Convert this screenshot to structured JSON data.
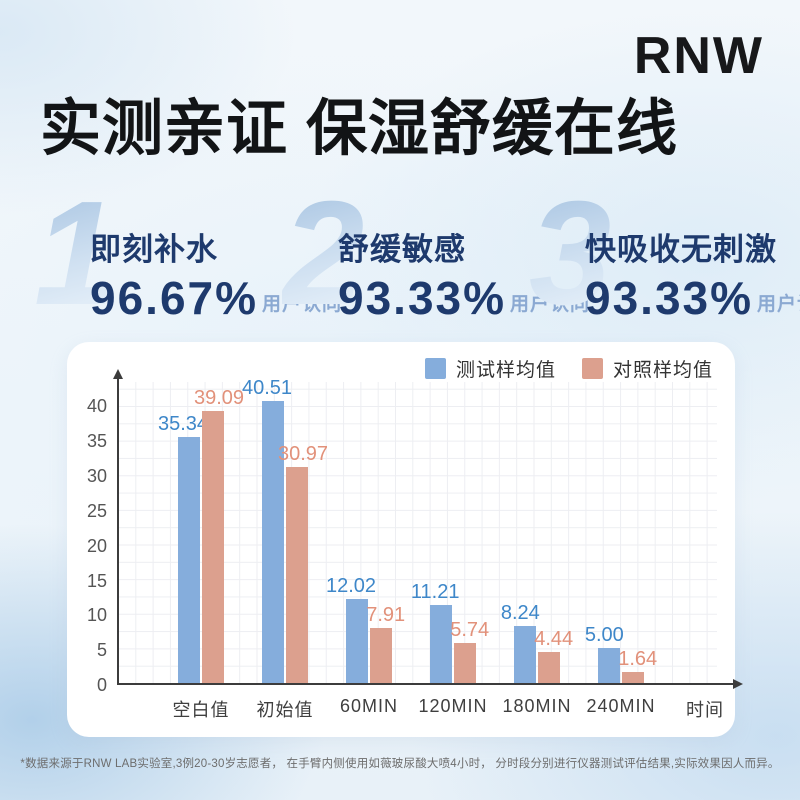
{
  "logo": "RNW",
  "title": "实测亲证 保湿舒缓在线",
  "stats": [
    {
      "index": "1",
      "label": "即刻补水",
      "percent": "96.67%",
      "suffix": "用户认同"
    },
    {
      "index": "2",
      "label": "舒缓敏感",
      "percent": "93.33%",
      "suffix": "用户认同"
    },
    {
      "index": "3",
      "label": "快吸收无刺激",
      "percent": "93.33%",
      "suffix": "用户认同"
    }
  ],
  "chart_data": {
    "type": "bar",
    "categories": [
      "空白值",
      "初始值",
      "60MIN",
      "120MIN",
      "180MIN",
      "240MIN"
    ],
    "series": [
      {
        "name": "测试样均值",
        "color": "#85ADDC",
        "label_color": "#3E87C9",
        "values": [
          35.34,
          40.51,
          12.02,
          11.21,
          8.24,
          5.0
        ]
      },
      {
        "name": "对照样均值",
        "color": "#DCA08E",
        "label_color": "#E2917A",
        "values": [
          39.09,
          30.97,
          7.91,
          5.74,
          4.44,
          1.64
        ]
      }
    ],
    "xlabel": "时间",
    "ylabel": "",
    "yticks": [
      0,
      5,
      10,
      15,
      20,
      25,
      30,
      35,
      40
    ],
    "ylim": [
      0,
      43.5
    ],
    "grid": true,
    "legend_position": "top-right",
    "value_label_decimals": 2
  },
  "footnote": "*数据来源于RNW LAB实验室,3例20-30岁志愿者， 在手臂内侧使用如薇玻尿酸大喷4小时， 分时段分别进行仪器测试评估结果,实际效果因人而异。"
}
